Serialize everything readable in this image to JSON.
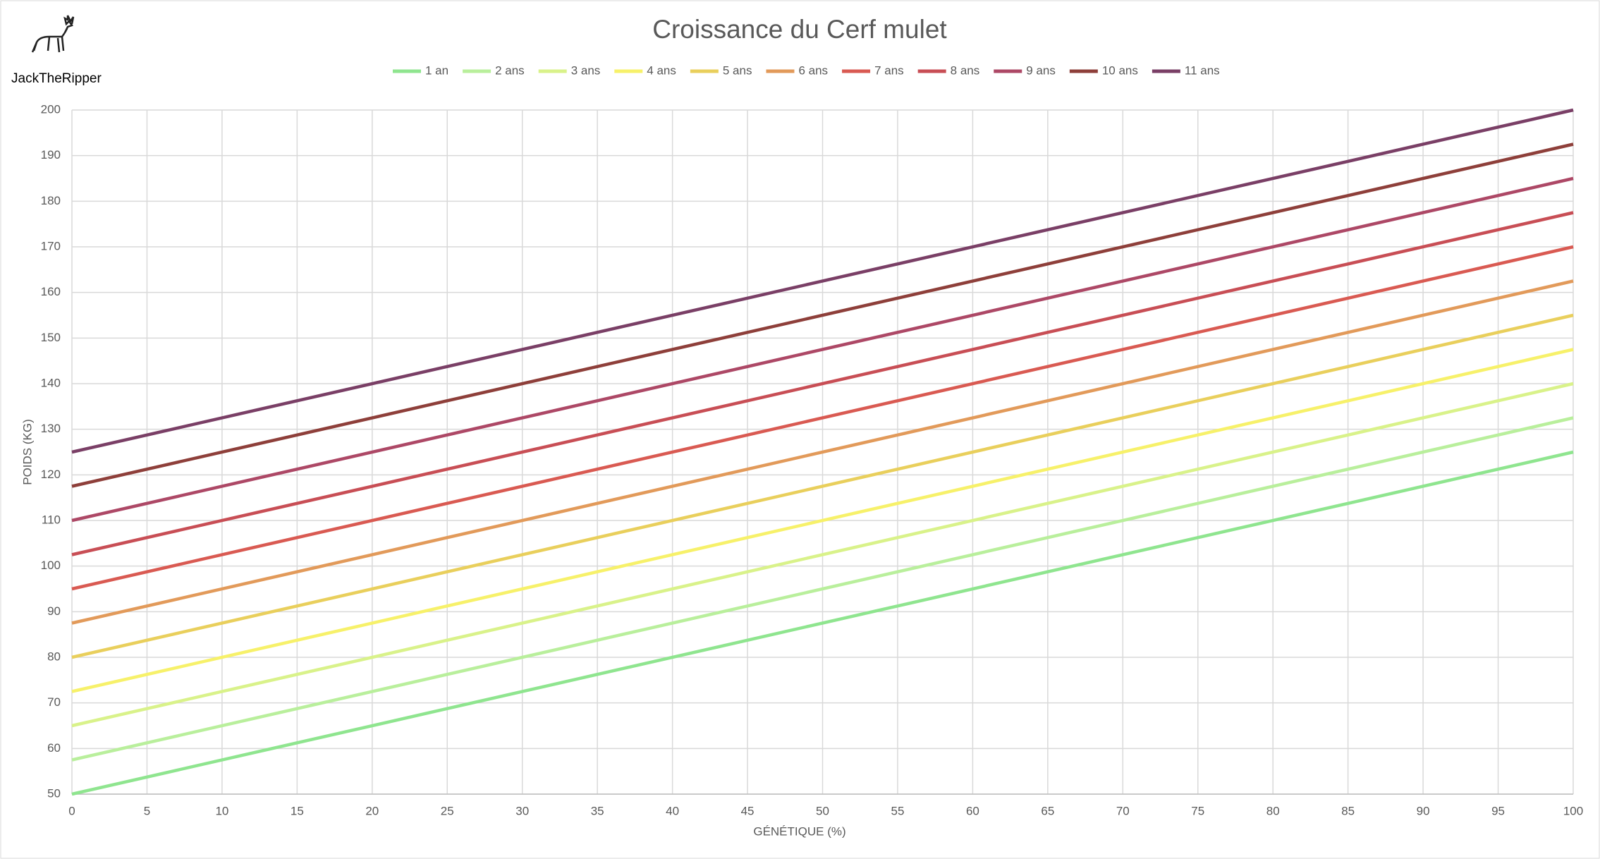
{
  "author": "JackTheRipper",
  "chart_data": {
    "type": "line",
    "title": "Croissance du Cerf mulet",
    "x_label": "GÉNÉTIQUE (%)",
    "y_label": "POIDS (KG)",
    "x": [
      0,
      100
    ],
    "series": [
      {
        "name": "1 an",
        "color": "#8fe58f",
        "values": [
          50,
          125
        ]
      },
      {
        "name": "2 ans",
        "color": "#b9ef9c",
        "values": [
          57.5,
          132.5
        ]
      },
      {
        "name": "3 ans",
        "color": "#d9f28a",
        "values": [
          65,
          140
        ]
      },
      {
        "name": "4 ans",
        "color": "#f7f16a",
        "values": [
          72.5,
          147.5
        ]
      },
      {
        "name": "5 ans",
        "color": "#e9cf5c",
        "values": [
          80,
          155
        ]
      },
      {
        "name": "6 ans",
        "color": "#e29a5a",
        "values": [
          87.5,
          162.5
        ]
      },
      {
        "name": "7 ans",
        "color": "#d95a52",
        "values": [
          95,
          170
        ]
      },
      {
        "name": "8 ans",
        "color": "#c84e55",
        "values": [
          102.5,
          177.5
        ]
      },
      {
        "name": "9 ans",
        "color": "#ad4866",
        "values": [
          110,
          185
        ]
      },
      {
        "name": "10 ans",
        "color": "#8e3f3a",
        "values": [
          117.5,
          192.5
        ]
      },
      {
        "name": "11 ans",
        "color": "#7a3f66",
        "values": [
          125,
          200
        ]
      }
    ],
    "xlim": [
      0,
      100
    ],
    "xticks": [
      0,
      5,
      10,
      15,
      20,
      25,
      30,
      35,
      40,
      45,
      50,
      55,
      60,
      65,
      70,
      75,
      80,
      85,
      90,
      95,
      100
    ],
    "ylim": [
      50,
      200
    ],
    "yticks": [
      50,
      60,
      70,
      80,
      90,
      100,
      110,
      120,
      130,
      140,
      150,
      160,
      170,
      180,
      190,
      200
    ],
    "grid": true,
    "legend": "top"
  }
}
